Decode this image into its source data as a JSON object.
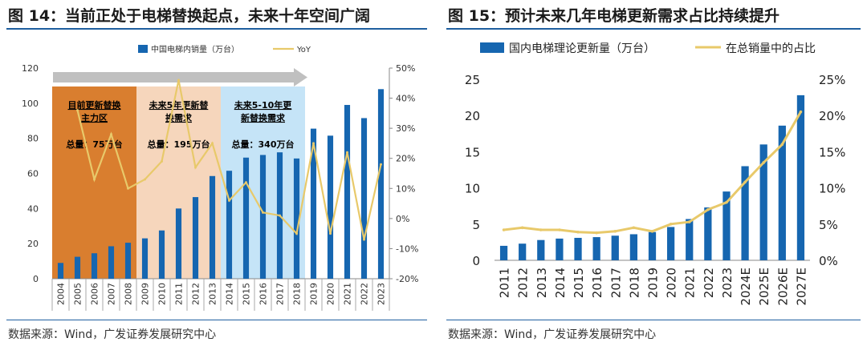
{
  "left": {
    "title": "图 14：当前正处于电梯替换起点，未来十年空间广阔",
    "source": "数据来源：Wind，广发证券发展研究中心",
    "legend": {
      "bar": "中国电梯内销量（万台）",
      "line": "YoY"
    },
    "zones": [
      {
        "title": "目前更新替换主力区",
        "total": "总量：75万台",
        "color": "#d97e2f"
      },
      {
        "title": "未来5年更新替换需求",
        "total": "总量：195万台",
        "color": "#f6d6bc"
      },
      {
        "title": "未来5-10年更新替换需求",
        "total": "总量：340万台",
        "color": "#c5e4f7"
      }
    ]
  },
  "right": {
    "title": "图 15：预计未来几年电梯更新需求占比持续提升",
    "source": "数据来源：Wind，广发证券发展研究中心",
    "legend": {
      "bar": "国内电梯理论更新量（万台）",
      "line": "在总销量中的占比"
    }
  },
  "chart_data": [
    {
      "type": "bar",
      "title": "当前正处于电梯替换起点，未来十年空间广阔",
      "categories": [
        "2004",
        "2005",
        "2006",
        "2007",
        "2008",
        "2009",
        "2010",
        "2011",
        "2012",
        "2013",
        "2014",
        "2015",
        "2016",
        "2017",
        "2018",
        "2019",
        "2020",
        "2021",
        "2022",
        "2023"
      ],
      "series": [
        {
          "name": "中国电梯内销量（万台）",
          "type": "bar",
          "axis": "left",
          "values": [
            9,
            12.5,
            14.5,
            18.5,
            20.5,
            23,
            27.5,
            40,
            46.5,
            58.5,
            61.5,
            69,
            70.5,
            72,
            68.5,
            85.5,
            81.5,
            99,
            91.5,
            108
          ]
        },
        {
          "name": "YoY",
          "type": "line",
          "axis": "right",
          "values": [
            null,
            36,
            13,
            28,
            10,
            13,
            19,
            46,
            17,
            25,
            6,
            12,
            2,
            1,
            -5,
            25,
            -5,
            22,
            -7,
            18
          ]
        }
      ],
      "y_left": {
        "min": 0,
        "max": 120,
        "ticks": [
          0,
          20,
          40,
          60,
          80,
          100,
          120
        ]
      },
      "y_right": {
        "min": -20,
        "max": 50,
        "ticks": [
          -20,
          -10,
          0,
          10,
          20,
          30,
          40,
          50
        ],
        "tick_labels": [
          "-20%",
          "-10%",
          "0%",
          "10%",
          "20%",
          "30%",
          "40%",
          "50%"
        ]
      }
    },
    {
      "type": "bar",
      "title": "预计未来几年电梯更新需求占比持续提升",
      "categories": [
        "2011",
        "2012",
        "2013",
        "2014",
        "2015",
        "2016",
        "2017",
        "2018",
        "2019",
        "2020",
        "2021",
        "2022",
        "2023",
        "2024E",
        "2025E",
        "2026E",
        "2027E"
      ],
      "series": [
        {
          "name": "国内电梯理论更新量（万台）",
          "type": "bar",
          "axis": "left",
          "values": [
            2,
            2.3,
            2.8,
            3,
            3.1,
            3.2,
            3.4,
            3.6,
            3.9,
            4.6,
            5.7,
            7.3,
            9.5,
            13,
            16,
            18.6,
            22.8
          ]
        },
        {
          "name": "在总销量中的占比",
          "type": "line",
          "axis": "right",
          "values": [
            4.2,
            4.5,
            4.2,
            4.2,
            3.9,
            3.8,
            4,
            4.5,
            4,
            5,
            5.3,
            7,
            8,
            10.8,
            13.5,
            16,
            20.5
          ]
        }
      ],
      "y_left": {
        "min": 0,
        "max": 25,
        "ticks": [
          0,
          5,
          10,
          15,
          20,
          25
        ]
      },
      "y_right": {
        "min": 0,
        "max": 25,
        "ticks": [
          0,
          5,
          10,
          15,
          20,
          25
        ],
        "tick_labels": [
          "0%",
          "5%",
          "10%",
          "15%",
          "20%",
          "25%"
        ]
      }
    }
  ]
}
